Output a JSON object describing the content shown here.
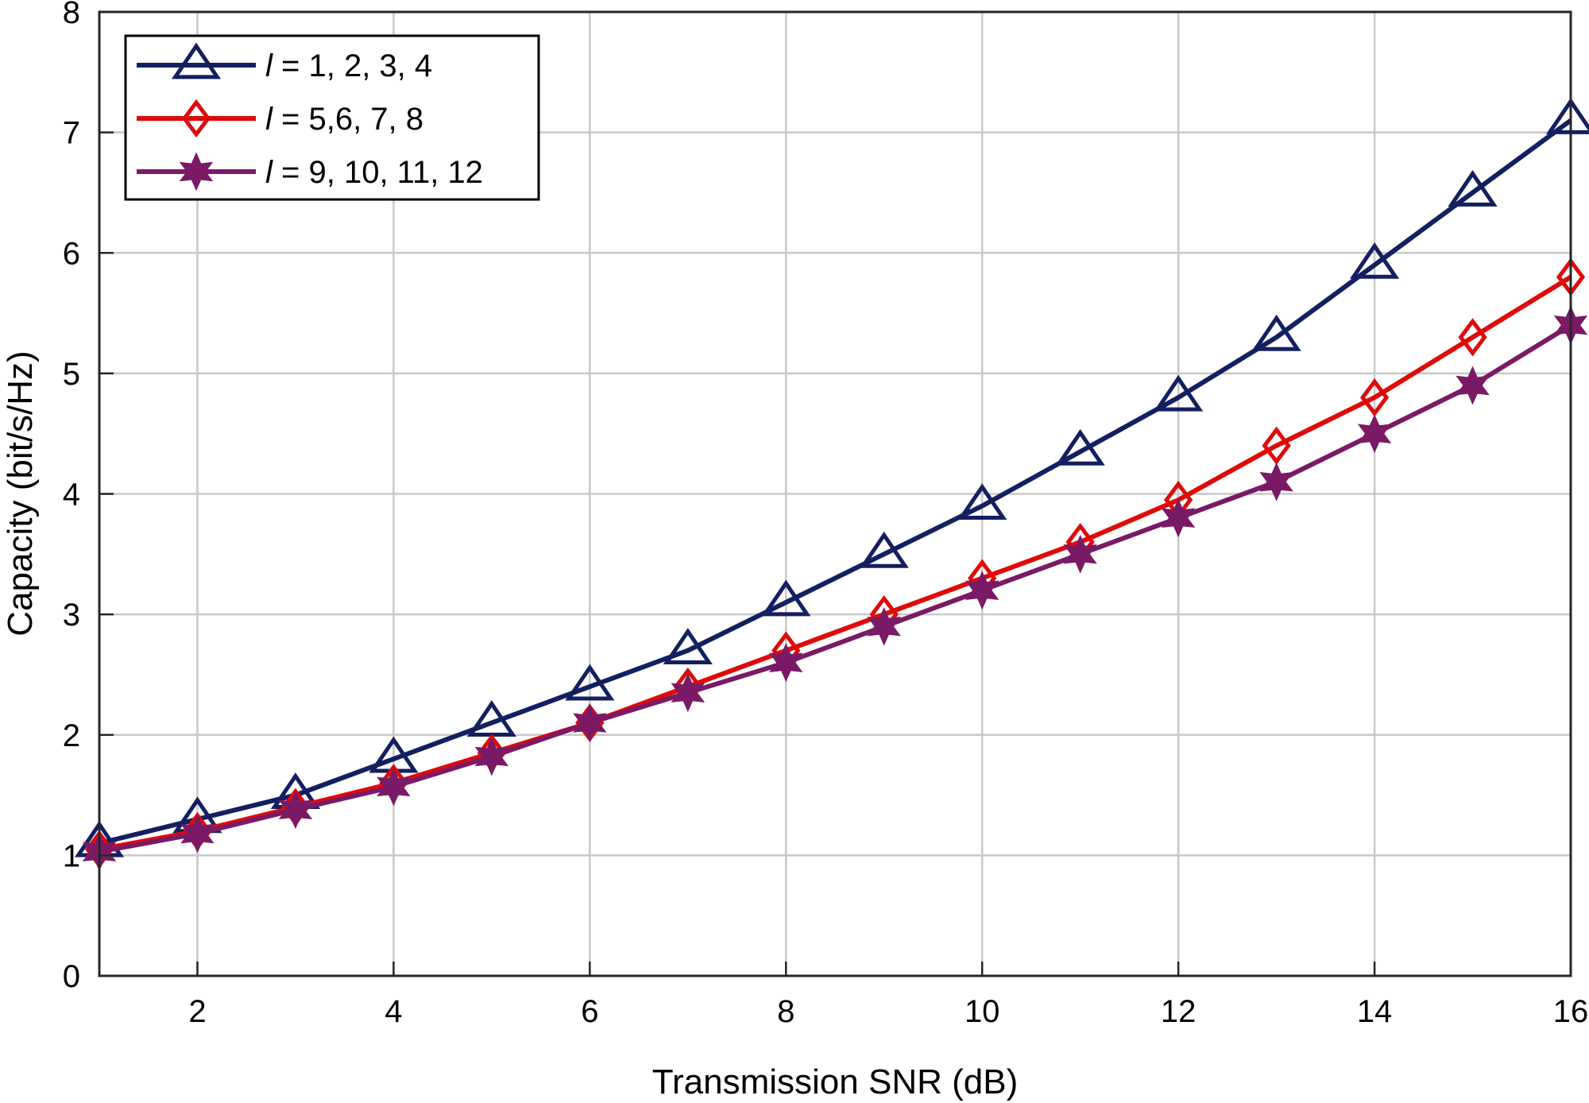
{
  "chart_data": {
    "type": "line",
    "title": "",
    "xlabel": "Transmission SNR (dB)",
    "ylabel": "Capacity (bit/s/Hz)",
    "xlim": [
      1,
      16
    ],
    "ylim": [
      0,
      8
    ],
    "xticks": [
      2,
      4,
      6,
      8,
      10,
      12,
      14,
      16
    ],
    "yticks": [
      0,
      1,
      2,
      3,
      4,
      5,
      6,
      7,
      8
    ],
    "grid": true,
    "legend_position": "top-left",
    "x": [
      1,
      2,
      3,
      4,
      5,
      6,
      7,
      8,
      9,
      10,
      11,
      12,
      13,
      14,
      15,
      16
    ],
    "series": [
      {
        "name": "l = 1, 2, 3, 4",
        "legend_var": "l",
        "legend_rest": " = 1, 2, 3, 4",
        "color": "#131f60",
        "marker": "triangle",
        "values": [
          1.1,
          1.3,
          1.5,
          1.8,
          2.1,
          2.4,
          2.7,
          3.1,
          3.5,
          3.9,
          4.35,
          4.8,
          5.3,
          5.9,
          6.5,
          7.1
        ]
      },
      {
        "name": "l = 5,6, 7, 8",
        "legend_var": "l",
        "legend_rest": " = 5,6, 7, 8",
        "color": "#e00a0a",
        "marker": "diamond",
        "values": [
          1.05,
          1.2,
          1.4,
          1.6,
          1.85,
          2.1,
          2.4,
          2.7,
          3.0,
          3.3,
          3.6,
          3.95,
          4.4,
          4.8,
          5.3,
          5.8
        ]
      },
      {
        "name": "l = 9, 10, 11, 12",
        "legend_var": "l",
        "legend_rest": " = 9, 10, 11, 12",
        "color": "#7a1a66",
        "marker": "star",
        "values": [
          1.03,
          1.18,
          1.38,
          1.57,
          1.82,
          2.1,
          2.35,
          2.6,
          2.9,
          3.2,
          3.5,
          3.8,
          4.1,
          4.5,
          4.9,
          5.4
        ]
      }
    ]
  }
}
